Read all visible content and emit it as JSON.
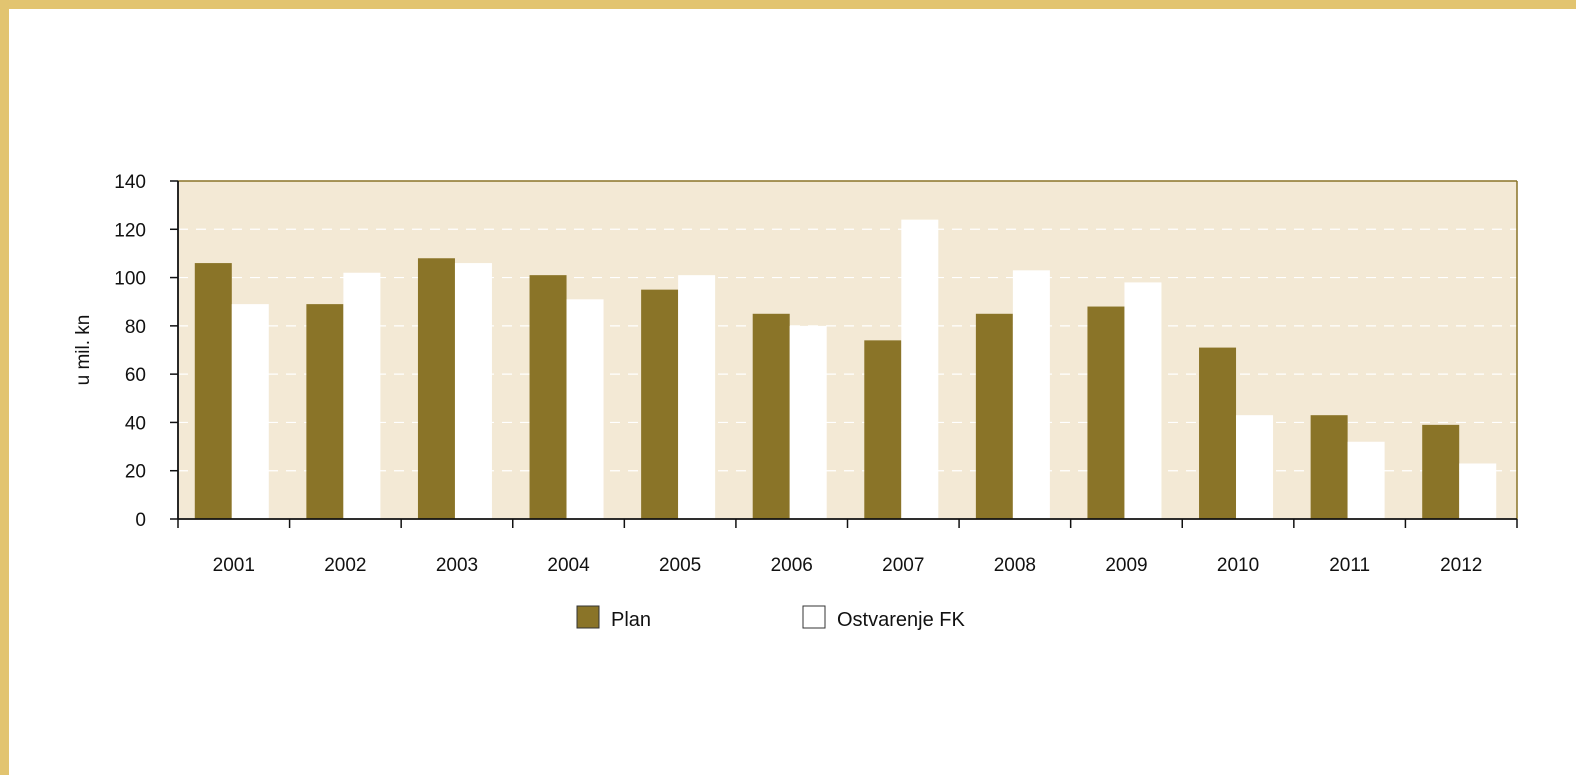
{
  "chart_data": {
    "type": "bar",
    "ylabel": "u mil. kn",
    "xlabel": "",
    "title": "",
    "ylim": [
      0,
      140
    ],
    "yticks": [
      0,
      20,
      40,
      60,
      80,
      100,
      120,
      140
    ],
    "grid": "horizontal dashed",
    "legend": "bottom-center",
    "categories": [
      "2001",
      "2002",
      "2003",
      "2004",
      "2005",
      "2006",
      "2007",
      "2008",
      "2009",
      "2010",
      "2011",
      "2012"
    ],
    "series": [
      {
        "name": "Plan",
        "color": "#8a7428",
        "values": [
          106,
          89,
          108,
          101,
          95,
          85,
          74,
          85,
          88,
          71,
          43,
          39
        ]
      },
      {
        "name": "Ostvarenje FK",
        "color": "#ffffff",
        "values": [
          89,
          102,
          106,
          91,
          101,
          80,
          124,
          103,
          98,
          43,
          32,
          23
        ]
      }
    ],
    "plot_background": "#f3e9d5",
    "axis_color": "#8a7428",
    "border_color": "#e2c470"
  }
}
